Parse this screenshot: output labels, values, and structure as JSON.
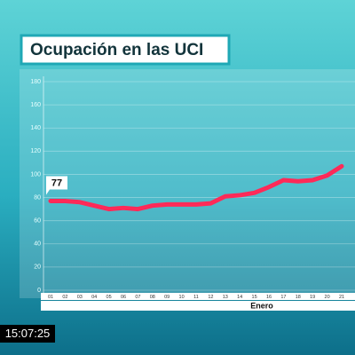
{
  "chart_data": {
    "type": "line",
    "title": "Ocupación en las UCI",
    "xlabel": "Enero",
    "categories": [
      "01",
      "02",
      "03",
      "04",
      "05",
      "06",
      "07",
      "08",
      "09",
      "10",
      "11",
      "12",
      "13",
      "14",
      "15",
      "16",
      "17",
      "18",
      "19",
      "20",
      "21"
    ],
    "series": [
      {
        "color": "#ff2a58",
        "values": [
          77,
          77,
          76,
          73,
          70,
          71,
          70,
          73,
          74,
          74,
          74,
          75,
          81,
          82,
          84,
          89,
          95,
          94,
          95,
          99,
          107
        ],
        "value_labels": [
          "77",
          null,
          null,
          null,
          null,
          null,
          null,
          null,
          null,
          null,
          null,
          null,
          null,
          null,
          null,
          null,
          null,
          null,
          null,
          null,
          null
        ]
      }
    ],
    "ylim": [
      0,
      180
    ],
    "yticks": [
      0,
      20,
      40,
      60,
      80,
      100,
      120,
      140,
      160,
      180
    ],
    "grid": true
  },
  "timestamp": "15:07:25"
}
